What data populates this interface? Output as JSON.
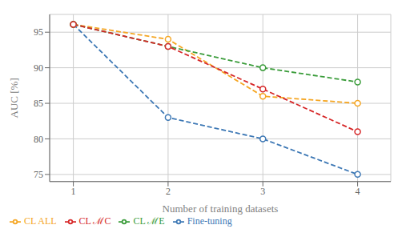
{
  "chart_data": {
    "type": "line",
    "xlabel": "Number of training datasets",
    "ylabel": "AUC [%]",
    "x": [
      1,
      2,
      3,
      4
    ],
    "series": [
      {
        "name": "Fine-tuning",
        "color": "#3d78b5",
        "values": [
          96.1,
          83.0,
          80.0,
          75.0
        ],
        "marker": "o",
        "line_style": "dashed"
      },
      {
        "name": "CL ALL",
        "color": "#f5a623",
        "values": [
          96.1,
          94.0,
          86.0,
          85.0
        ],
        "marker": "o",
        "line_style": "dashed"
      },
      {
        "name": "CL ℳE",
        "color": "#3a9c3a",
        "values": [
          96.1,
          93.0,
          90.0,
          88.0
        ],
        "marker": "o",
        "line_style": "dashed"
      },
      {
        "name": "CL ℳC",
        "color": "#d62728",
        "values": [
          96.1,
          93.0,
          87.0,
          81.0
        ],
        "marker": "o",
        "line_style": "dashed"
      }
    ],
    "xlim": [
      0.75,
      4.35
    ],
    "ylim": [
      74.0,
      97.5
    ],
    "xticks": [
      1,
      2,
      3,
      4
    ],
    "yticks": [
      75,
      80,
      85,
      90,
      95
    ],
    "grid": true,
    "legend": "lower left"
  }
}
